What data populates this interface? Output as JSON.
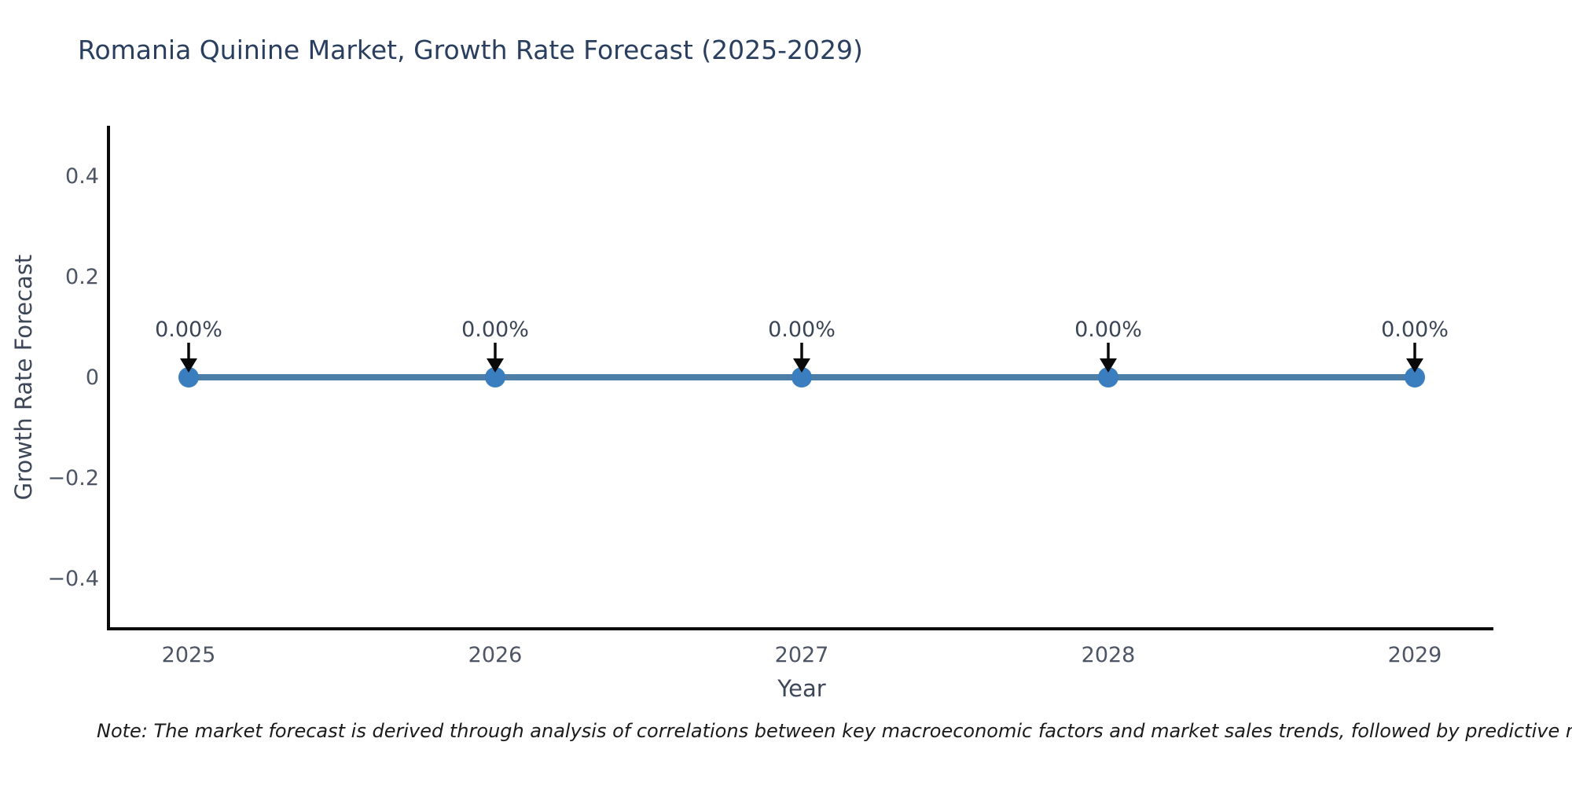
{
  "title": "Romania Quinine Market, Growth Rate Forecast (2025-2029)",
  "footnote": "Note: The market forecast is derived through analysis of correlations between key macroeconomic factors and market sales trends, followed by predictive modeling to project future sa",
  "chart_data": {
    "type": "line",
    "title": "Romania Quinine Market, Growth Rate Forecast (2025-2029)",
    "xlabel": "Year",
    "ylabel": "Growth Rate Forecast",
    "x": [
      2025,
      2026,
      2027,
      2028,
      2029
    ],
    "series": [
      {
        "name": "Growth Rate Forecast",
        "values": [
          0,
          0,
          0,
          0,
          0
        ]
      }
    ],
    "point_labels": [
      "0.00%",
      "0.00%",
      "0.00%",
      "0.00%",
      "0.00%"
    ],
    "xticks": [
      "2025",
      "2026",
      "2027",
      "2028",
      "2029"
    ],
    "yticks": [
      0.4,
      0.2,
      0,
      -0.2,
      -0.4
    ],
    "ylim": [
      -0.5,
      0.5
    ],
    "grid": false,
    "legend": "none",
    "marker_style": "circle-with-down-arrow-annotation",
    "colors": {
      "line": "#4d7ea8",
      "marker": "#3a7ebf",
      "arrow": "#0a0a0a",
      "axis": "#0a0a0a",
      "title_text": "#2a3f5f",
      "tick_text": "#4d5564"
    }
  }
}
